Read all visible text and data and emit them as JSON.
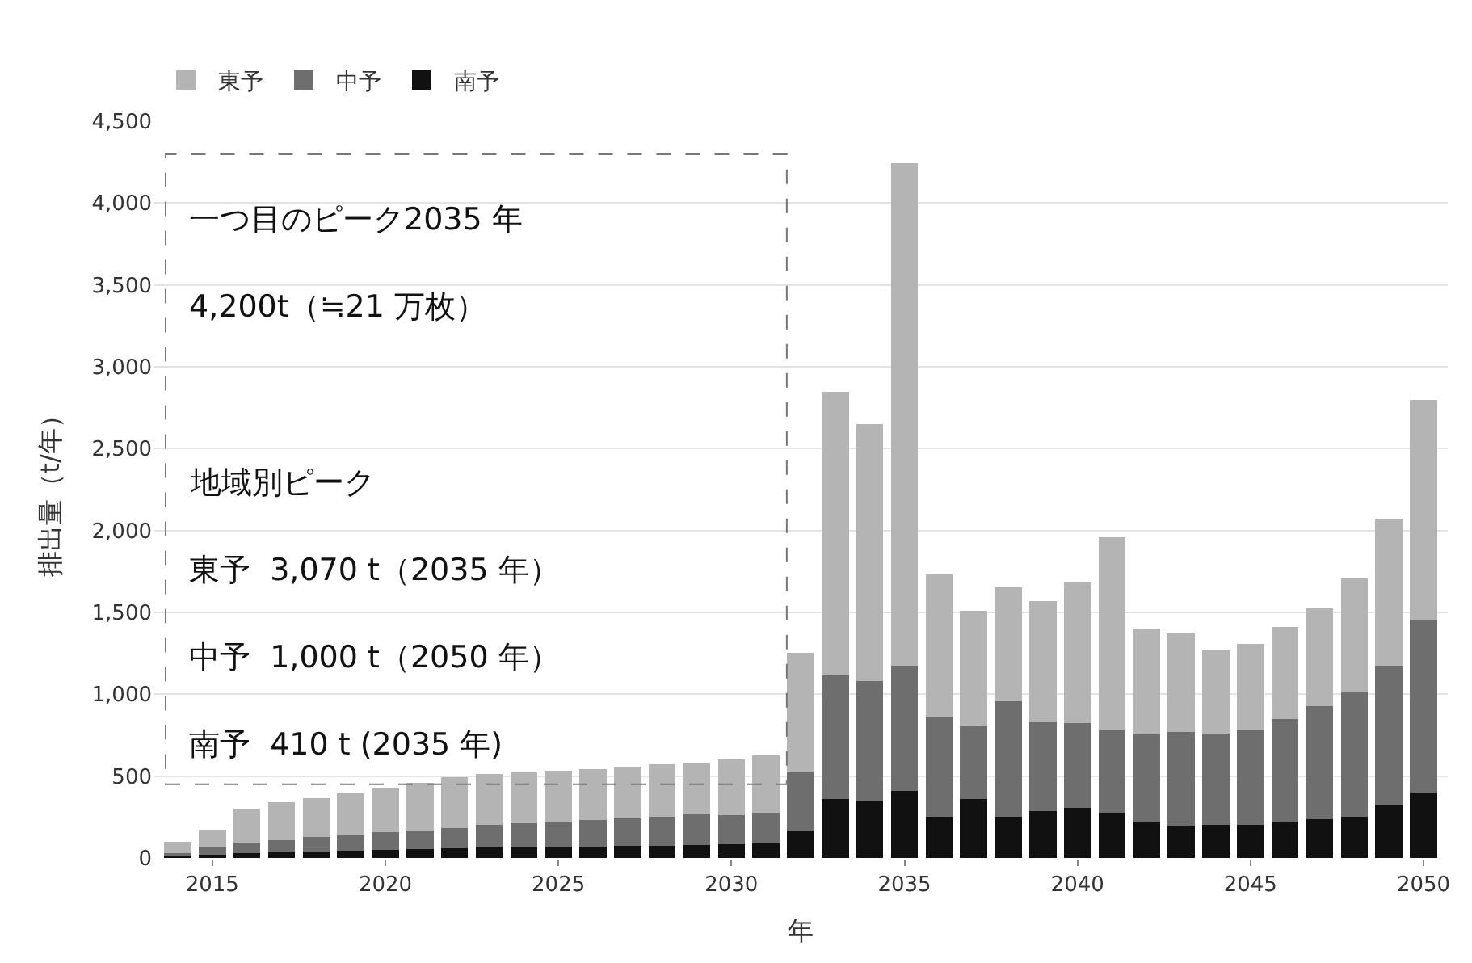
{
  "chart_data": {
    "type": "bar",
    "stacked": true,
    "xlabel": "年",
    "ylabel": "排出量（t/年）",
    "x": [
      2014,
      2015,
      2016,
      2017,
      2018,
      2019,
      2020,
      2021,
      2022,
      2023,
      2024,
      2025,
      2026,
      2027,
      2028,
      2029,
      2030,
      2031,
      2032,
      2033,
      2034,
      2035,
      2036,
      2037,
      2038,
      2039,
      2040,
      2041,
      2042,
      2043,
      2044,
      2045,
      2046,
      2047,
      2048,
      2049,
      2050
    ],
    "series": [
      {
        "name": "南予",
        "color": "#111111",
        "values": [
          10,
          20,
          30,
          35,
          40,
          45,
          50,
          55,
          60,
          62,
          65,
          68,
          70,
          72,
          75,
          80,
          85,
          88,
          168,
          360,
          345,
          410,
          250,
          360,
          250,
          285,
          305,
          275,
          220,
          195,
          200,
          200,
          220,
          235,
          250,
          325,
          400
        ]
      },
      {
        "name": "中予",
        "color": "#6e6e6e",
        "values": [
          20,
          50,
          65,
          75,
          90,
          95,
          110,
          115,
          125,
          138,
          145,
          147,
          160,
          168,
          175,
          185,
          175,
          187,
          355,
          755,
          735,
          765,
          610,
          445,
          705,
          545,
          520,
          505,
          535,
          575,
          560,
          580,
          630,
          695,
          765,
          850,
          1050
        ]
      },
      {
        "name": "東予",
        "color": "#b4b4b4",
        "values": [
          70,
          105,
          205,
          230,
          235,
          260,
          265,
          290,
          310,
          315,
          315,
          320,
          315,
          320,
          320,
          315,
          340,
          350,
          730,
          1730,
          1570,
          3070,
          870,
          705,
          700,
          740,
          860,
          1180,
          645,
          605,
          515,
          530,
          560,
          595,
          690,
          895,
          1350
        ]
      }
    ],
    "xlim": [
      2013.3,
      2050.7
    ],
    "xticks": [
      2015,
      2020,
      2025,
      2030,
      2035,
      2040,
      2045,
      2050
    ],
    "ylim": [
      0,
      4500
    ],
    "yticks": [
      0,
      500,
      {
        "value": 1000,
        "label": "1,000"
      },
      {
        "value": 1500,
        "label": "1,500"
      },
      {
        "value": 2000,
        "label": "2,000"
      },
      {
        "value": 2500,
        "label": "2,500"
      },
      {
        "value": 3000,
        "label": "3,000"
      },
      {
        "value": 3500,
        "label": "3,500"
      },
      {
        "value": 4000,
        "label": "4,000"
      },
      {
        "value": 4500,
        "label": "4,500"
      }
    ],
    "grid": "y",
    "legend": "top left",
    "annotations": [
      "一つ目のピーク2035 年",
      "4,200t（≒21 万枚）",
      "地域別ピーク",
      "東予  3,070 t（2035 年）",
      "中予  1,000 t（2050 年）",
      "南予  410 t (2035 年)"
    ]
  }
}
